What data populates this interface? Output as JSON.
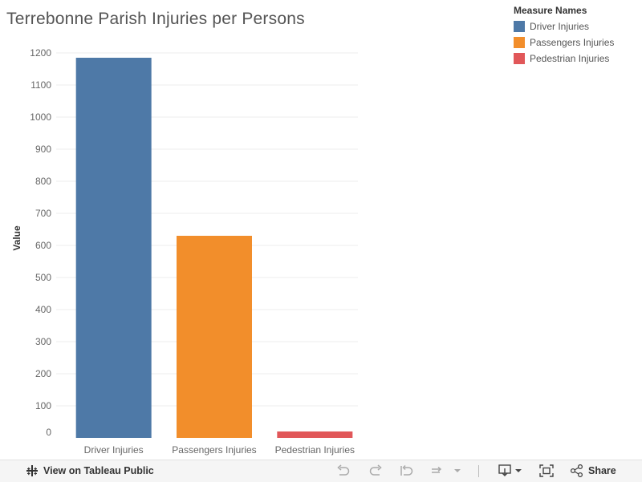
{
  "title": "Terrebonne Parish Injuries per Persons",
  "legend": {
    "title": "Measure Names",
    "items": [
      {
        "label": "Driver Injuries",
        "color": "#4e79a7"
      },
      {
        "label": "Passengers Injuries",
        "color": "#f28e2b"
      },
      {
        "label": "Pedestrian Injuries",
        "color": "#e15759"
      }
    ]
  },
  "chart_data": {
    "type": "bar",
    "title": "Terrebonne Parish Injuries per Persons",
    "xlabel": "",
    "ylabel": "Value",
    "categories": [
      "Driver Injuries",
      "Passengers Injuries",
      "Pedestrian Injuries"
    ],
    "values": [
      1185,
      630,
      20
    ],
    "colors": [
      "#4e79a7",
      "#f28e2b",
      "#e15759"
    ],
    "ylim": [
      0,
      1200
    ],
    "yticks": [
      0,
      100,
      200,
      300,
      400,
      500,
      600,
      700,
      800,
      900,
      1000,
      1100,
      1200
    ],
    "grid": true,
    "legend_position": "top-right"
  },
  "toolbar": {
    "view_label": "View on Tableau Public",
    "share_label": "Share"
  }
}
